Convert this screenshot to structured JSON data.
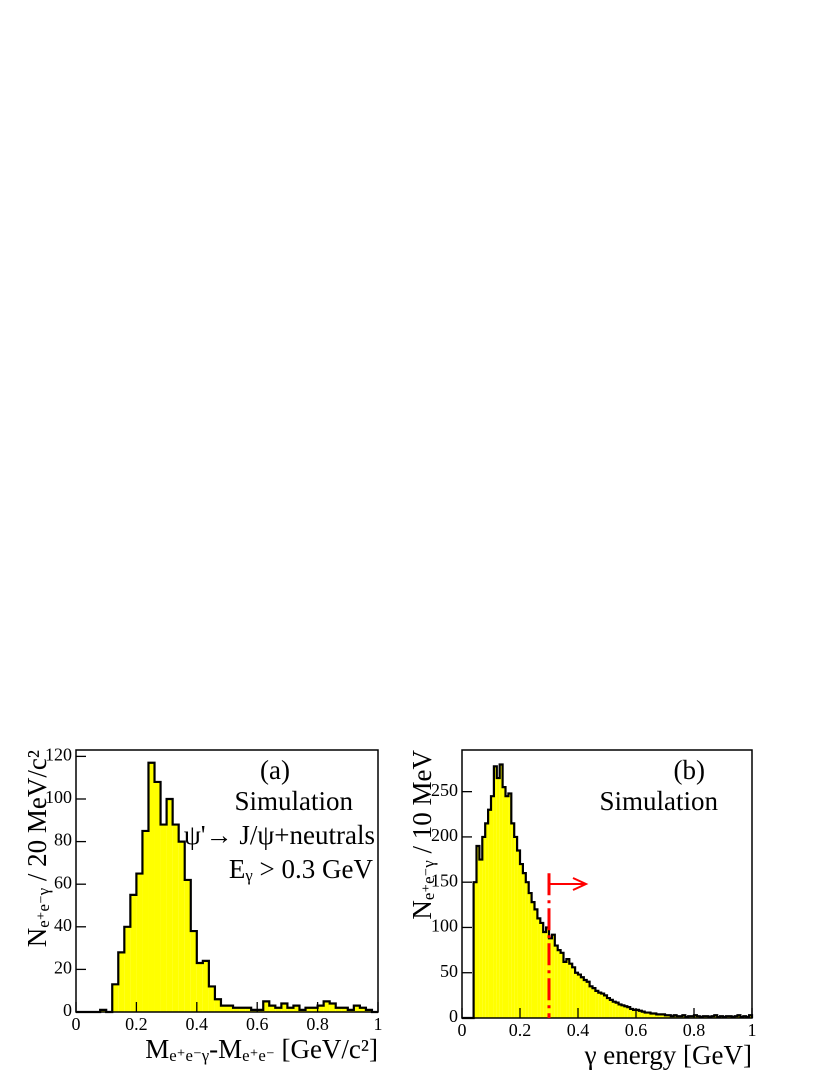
{
  "chart_data": [
    {
      "type": "histogram",
      "color": "#ffff00",
      "bins": [
        0,
        0.02,
        0.04,
        0.06,
        0.08,
        0.1,
        0.12,
        0.14,
        0.16,
        0.18,
        0.2,
        0.22,
        0.24,
        0.26,
        0.28,
        0.3,
        0.32,
        0.34,
        0.36,
        0.38,
        0.4,
        0.42,
        0.44,
        0.46,
        0.48,
        0.5,
        0.52,
        0.54,
        0.56,
        0.58,
        0.6,
        0.62,
        0.64,
        0.66,
        0.68,
        0.7,
        0.72,
        0.74,
        0.76,
        0.78,
        0.8,
        0.82,
        0.84,
        0.86,
        0.88,
        0.9,
        0.92,
        0.94,
        0.96,
        0.98,
        1
      ],
      "values": [
        0,
        0,
        0,
        0,
        1,
        0,
        13,
        28,
        40,
        55,
        65,
        85,
        117,
        108,
        88,
        100,
        88,
        80,
        62,
        38,
        23,
        24,
        12,
        6,
        3,
        3,
        2,
        2,
        2,
        1,
        1,
        5,
        3,
        2,
        4,
        2,
        3,
        1,
        2,
        2,
        3,
        5,
        4,
        2,
        2,
        1,
        3,
        2,
        1,
        0
      ],
      "xlim": [
        0,
        1
      ],
      "ylim": [
        0,
        123
      ],
      "xticks": [
        0,
        0.2,
        0.4,
        0.6,
        0.8,
        1
      ],
      "yticks": [
        0,
        20,
        40,
        60,
        80,
        100,
        120
      ],
      "x_label": [
        {
          "text": "M"
        },
        {
          "sub": "e⁺e⁻γ"
        },
        {
          "text": "-M"
        },
        {
          "sub": "e⁺e⁻"
        },
        {
          "text": "  [GeV/c²]"
        }
      ],
      "y_label": [
        {
          "text": "N"
        },
        {
          "sub": "e⁺e⁻γ"
        },
        {
          "text": " / 20 MeV/c²"
        }
      ],
      "annotations": [
        [
          {
            "text": "(a)"
          }
        ],
        [
          {
            "text": "Simulation"
          }
        ],
        [
          {
            "text": "ψ'→ J/ψ+neutrals"
          }
        ],
        [
          {
            "text": "E"
          },
          {
            "sub": "γ"
          },
          {
            "text": " > 0.3 GeV"
          }
        ]
      ]
    },
    {
      "type": "histogram",
      "color": "#ffff00",
      "bins": [
        0,
        0.01,
        0.02,
        0.03,
        0.04,
        0.05,
        0.06,
        0.07,
        0.08,
        0.09,
        0.1,
        0.11,
        0.12,
        0.13,
        0.14,
        0.15,
        0.16,
        0.17,
        0.18,
        0.19,
        0.2,
        0.21,
        0.22,
        0.23,
        0.24,
        0.25,
        0.26,
        0.27,
        0.28,
        0.29,
        0.3,
        0.31,
        0.32,
        0.33,
        0.34,
        0.35,
        0.36,
        0.37,
        0.38,
        0.39,
        0.4,
        0.41,
        0.42,
        0.43,
        0.44,
        0.45,
        0.46,
        0.47,
        0.48,
        0.49,
        0.5,
        0.51,
        0.52,
        0.53,
        0.54,
        0.55,
        0.56,
        0.57,
        0.58,
        0.59,
        0.6,
        0.61,
        0.62,
        0.63,
        0.64,
        0.65,
        0.66,
        0.67,
        0.68,
        0.69,
        0.7,
        0.71,
        0.72,
        0.73,
        0.74,
        0.75,
        0.76,
        0.77,
        0.78,
        0.79,
        0.8,
        0.81,
        0.82,
        0.83,
        0.84,
        0.85,
        0.86,
        0.87,
        0.88,
        0.89,
        0.9,
        0.91,
        0.92,
        0.93,
        0.94,
        0.95,
        0.96,
        0.97,
        0.98,
        0.99,
        1
      ],
      "values": [
        0,
        0,
        0,
        0,
        150,
        190,
        175,
        200,
        215,
        230,
        245,
        278,
        265,
        280,
        255,
        245,
        248,
        215,
        200,
        185,
        170,
        160,
        150,
        138,
        128,
        120,
        110,
        105,
        95,
        100,
        88,
        92,
        80,
        75,
        72,
        62,
        65,
        60,
        56,
        50,
        48,
        45,
        42,
        40,
        35,
        33,
        30,
        28,
        27,
        25,
        22,
        20,
        18,
        17,
        15,
        14,
        13,
        12,
        10,
        9,
        9,
        8,
        7,
        6,
        6,
        5,
        5,
        4,
        4,
        4,
        3,
        3,
        2,
        3,
        2,
        2,
        3,
        1,
        2,
        2,
        3,
        2,
        1,
        2,
        2,
        1,
        2,
        3,
        1,
        2,
        1,
        2,
        2,
        1,
        2,
        3,
        1,
        2,
        1,
        3
      ],
      "xlim": [
        0,
        1
      ],
      "ylim": [
        0,
        296
      ],
      "xticks": [
        0,
        0.2,
        0.4,
        0.6,
        0.8,
        1
      ],
      "yticks": [
        0,
        50,
        100,
        150,
        200,
        250
      ],
      "cut": 0.3,
      "cut_color": "#ff0000",
      "x_label": [
        {
          "text": "γ energy [GeV]"
        }
      ],
      "y_label": [
        {
          "text": "N"
        },
        {
          "sub": "e⁺e⁻γ"
        },
        {
          "text": " / 10 MeV"
        }
      ],
      "annotations": [
        [
          {
            "text": "(b)"
          }
        ],
        [
          {
            "text": "Simulation"
          }
        ]
      ]
    }
  ]
}
